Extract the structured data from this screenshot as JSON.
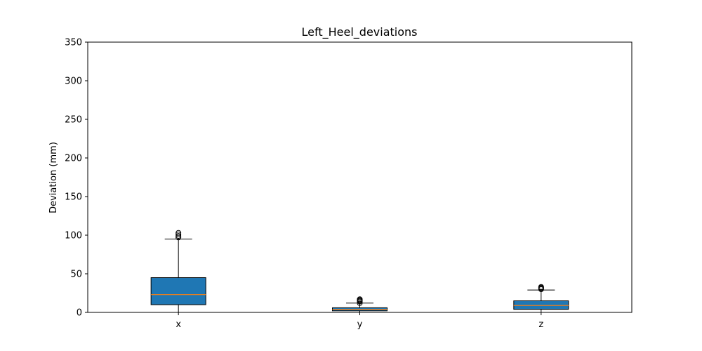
{
  "chart_data": {
    "type": "box",
    "title": "Left_Heel_deviations",
    "xlabel": "",
    "ylabel": "Deviation (mm)",
    "ylim": [
      0,
      350
    ],
    "yticks": [
      0,
      50,
      100,
      150,
      200,
      250,
      300,
      350
    ],
    "categories": [
      "x",
      "y",
      "z"
    ],
    "boxes": [
      {
        "label": "x",
        "whisker_low": 0,
        "q1": 10,
        "median": 23,
        "q3": 45,
        "whisker_high": 95,
        "outliers": [
          97,
          99,
          101,
          103
        ]
      },
      {
        "label": "y",
        "whisker_low": 0,
        "q1": 2,
        "median": 4,
        "q3": 6,
        "whisker_high": 12,
        "outliers": [
          12,
          14,
          15,
          16,
          17
        ]
      },
      {
        "label": "z",
        "whisker_low": 0,
        "q1": 4,
        "median": 9,
        "q3": 15,
        "whisker_high": 29,
        "outliers": [
          30,
          31,
          32,
          33
        ]
      }
    ],
    "colors": {
      "box_fill": "#1f77b4",
      "median": "#ff7f0e",
      "edge": "#000000"
    },
    "grid": false,
    "legend": "none"
  }
}
